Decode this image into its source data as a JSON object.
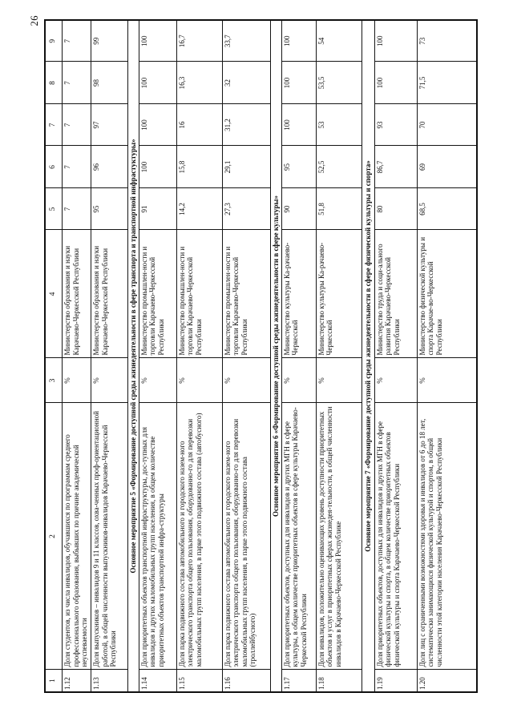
{
  "page_number": "26",
  "colors": {
    "paper": "#ffffff",
    "ink": "#0d0d0d",
    "border": "#151515"
  },
  "table": {
    "header_cols": [
      "1",
      "2",
      "3",
      "4",
      "5",
      "6",
      "7",
      "8",
      "9"
    ],
    "rows": [
      {
        "type": "data",
        "num": "1.12",
        "indicator": "Доля студентов, из числа инвалидов, обучавшихся по программам среднего профессионального образования, выбывших по причине академической неуспеваемости",
        "unit": "%",
        "executor": "Министерство образования и науки Карачаево-Черкесской Республики",
        "values": [
          "7",
          "7",
          "7",
          "7",
          "7"
        ]
      },
      {
        "type": "data",
        "num": "1.13",
        "indicator": "Доля выпускников – инвалидов 9 и 11 классов, охва-ченных проф-ориентационной работой, в общей численности выпускников-инвалидов Карачаево-Черкесской Республики",
        "unit": "%",
        "executor": "Министерство образования и науки Карачаево-Черкесской Республики",
        "values": [
          "95",
          "96",
          "97",
          "98",
          "99"
        ]
      },
      {
        "type": "section",
        "label": "Основное мероприятие 5 «Формирование доступной среды жизнедеятельности в сфере транспорта и транспортной инфрастуктуры»"
      },
      {
        "type": "data",
        "num": "1.14",
        "indicator": "Доля приоритетных объектов транспортной инфраструктуры, дос-тупных для инвалидов и других маломобильных групп населения, в общем количестве приоритетных объектов транспортной инфра-структуры",
        "unit": "%",
        "executor": "Министерство промышлен-ности и торговли Карачаево-Черкесской Республики",
        "values": [
          "91",
          "100",
          "100",
          "100",
          "100"
        ]
      },
      {
        "type": "data",
        "num": "1.15",
        "indicator": "Доля парка подвижного состава автомобильного и городского назем-ного электрического транспорта общего пользования, оборудованно-го для перевозки маломобильных групп населения, в парке этого подвижного состава (автобусного)",
        "unit": "%",
        "executor": "Министерство промышлен-ности и торговли Карачаево-Черкесской Республики",
        "values": [
          "14,2",
          "15,8",
          "16",
          "16,3",
          "16,7"
        ]
      },
      {
        "type": "data",
        "num": "1.16",
        "indicator": "Доля парка подвижного состава автомобильного и городского назем-ного электрического транспорта общего пользования, оборудованно-го для перевозки маломобильных групп населения, в парке этого подвижного состава (троллейбусного)",
        "unit": "%",
        "executor": "Министерство промышлен-ности и торговли Карачаево-Черкесской Республики",
        "values": [
          "27,3",
          "29,1",
          "31,2",
          "32",
          "33,7"
        ]
      },
      {
        "type": "section",
        "label": "Основное мероприятие 6 «Формирование доступной среды жизнедеятельности в сфере культуры»"
      },
      {
        "type": "data",
        "num": "1.17",
        "indicator": "Доля приоритетных объектов, доступных для инвалидов и других МГН в сфере культуры, в общем количестве приоритетных объектов в сфере культуры Карачаево-Черкесской Республики",
        "unit": "%",
        "executor": "Министерство культуры Ка-рачаево-Черкесской",
        "values": [
          "90",
          "95",
          "100",
          "100",
          "100"
        ]
      },
      {
        "type": "data",
        "num": "1.18",
        "indicator": "Доля инвалидов, положительно оценивающих уровень доступности приоритетных объектов и услуг в приоритетных сферах жизнедея-тельности, в общей численности инвалидов в Карачаево-Черкесской Республике",
        "unit": "%",
        "executor": "Министерство культуры Ка-рачаево-Черкесской",
        "values": [
          "51,8",
          "52,5",
          "53",
          "53,5",
          "54"
        ]
      },
      {
        "type": "section",
        "label": "Основное мероприятие 7 «Формирование доступной среды жизнедеятельности в сфере физической культуры и спорта»"
      },
      {
        "type": "data",
        "num": "1.19",
        "indicator": "Доля приоритетных объектов, доступных для инвалидов и других МГН в сфере физической культуры и спорта, в общем количестве приоритетных объектов физической культуры и спорта Карачаево-Черкесской Республики",
        "unit": "%",
        "executor": "Министерство труда и соци-ального развития Карачаево-Черкесской Республики",
        "values": [
          "80",
          "86,7",
          "93",
          "100",
          "100"
        ]
      },
      {
        "type": "data",
        "num": "1.20",
        "indicator": "Доля лиц с ограниченными возможностями здоровья и инвалидов от 6 до 18 лет, систематически занимающихся физической культурой и спортом, в общей численности этой категории населения Карачаево-Черкесской Республики",
        "unit": "%",
        "executor": "Министерство физической культуры и спорта Карачае-во-Черкесской Республики",
        "values": [
          "68,5",
          "69",
          "70",
          "71,5",
          "73"
        ]
      }
    ]
  }
}
